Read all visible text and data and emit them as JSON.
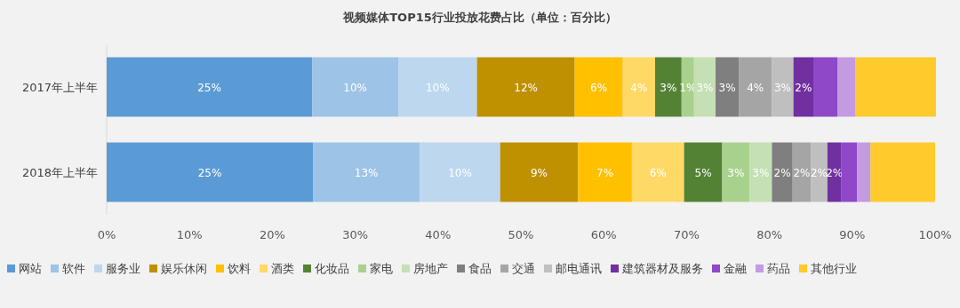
{
  "chart_data": {
    "type": "bar",
    "orientation": "horizontal",
    "stacked": true,
    "title": "视频媒体TOP15行业投放花费占比（单位：百分比）",
    "categories": [
      "2017年上半年",
      "2018年上半年"
    ],
    "xlim": [
      0,
      100
    ],
    "xticks": [
      {
        "value": 0,
        "label": "0%"
      },
      {
        "value": 10,
        "label": "10%"
      },
      {
        "value": 20,
        "label": "20%"
      },
      {
        "value": 30,
        "label": "30%"
      },
      {
        "value": 40,
        "label": "40%"
      },
      {
        "value": 50,
        "label": "50%"
      },
      {
        "value": 60,
        "label": "60%"
      },
      {
        "value": 70,
        "label": "70%"
      },
      {
        "value": 80,
        "label": "80%"
      },
      {
        "value": 90,
        "label": "90%"
      },
      {
        "value": 100,
        "label": "100%"
      }
    ],
    "legend": "bottom",
    "series": [
      {
        "name": "网站",
        "color": "#5b9bd5",
        "values": [
          24.8,
          24.9
        ],
        "value_labels": [
          "25%",
          "25%"
        ]
      },
      {
        "name": "软件",
        "color": "#9dc3e6",
        "values": [
          10.4,
          12.9
        ],
        "value_labels": [
          "10%",
          "13%"
        ]
      },
      {
        "name": "服务业",
        "color": "#bdd7ee",
        "values": [
          9.5,
          9.7
        ],
        "value_labels": [
          "10%",
          "10%"
        ]
      },
      {
        "name": "娱乐休闲",
        "color": "#bf9000",
        "values": [
          11.8,
          9.4
        ],
        "value_labels": [
          "12%",
          "9%"
        ]
      },
      {
        "name": "饮料",
        "color": "#ffc000",
        "values": [
          5.8,
          6.5
        ],
        "value_labels": [
          "6%",
          "7%"
        ]
      },
      {
        "name": "酒类",
        "color": "#ffd966",
        "values": [
          3.9,
          6.3
        ],
        "value_labels": [
          "4%",
          "6%"
        ]
      },
      {
        "name": "化妆品",
        "color": "#548235",
        "values": [
          3.2,
          4.6
        ],
        "value_labels": [
          "3%",
          "5%"
        ]
      },
      {
        "name": "家电",
        "color": "#a9d18e",
        "values": [
          1.5,
          3.3
        ],
        "value_labels": [
          "1%",
          "3%"
        ]
      },
      {
        "name": "房地产",
        "color": "#c5e0b4",
        "values": [
          2.6,
          2.7
        ],
        "value_labels": [
          "3%",
          "3%"
        ]
      },
      {
        "name": "食品",
        "color": "#7f7f7f",
        "values": [
          2.8,
          2.5
        ],
        "value_labels": [
          "3%",
          "2%"
        ]
      },
      {
        "name": "交通",
        "color": "#a5a5a5",
        "values": [
          4.0,
          2.2
        ],
        "value_labels": [
          "4%",
          "2%"
        ]
      },
      {
        "name": "邮电通讯",
        "color": "#bfbfbf",
        "values": [
          2.6,
          2.0
        ],
        "value_labels": [
          "3%",
          "2%"
        ]
      },
      {
        "name": "建筑器材及服务",
        "color": "#7030a0",
        "values": [
          2.4,
          1.7
        ],
        "value_labels": [
          "2%",
          "2%"
        ]
      },
      {
        "name": "金融",
        "color": "#8e48c8",
        "values": [
          2.9,
          1.9
        ]
      },
      {
        "name": "药品",
        "color": "#c39be0",
        "values": [
          2.2,
          1.6
        ]
      },
      {
        "name": "其他行业",
        "color": "#ffca2c",
        "values": [
          9.7,
          7.8
        ]
      }
    ]
  }
}
